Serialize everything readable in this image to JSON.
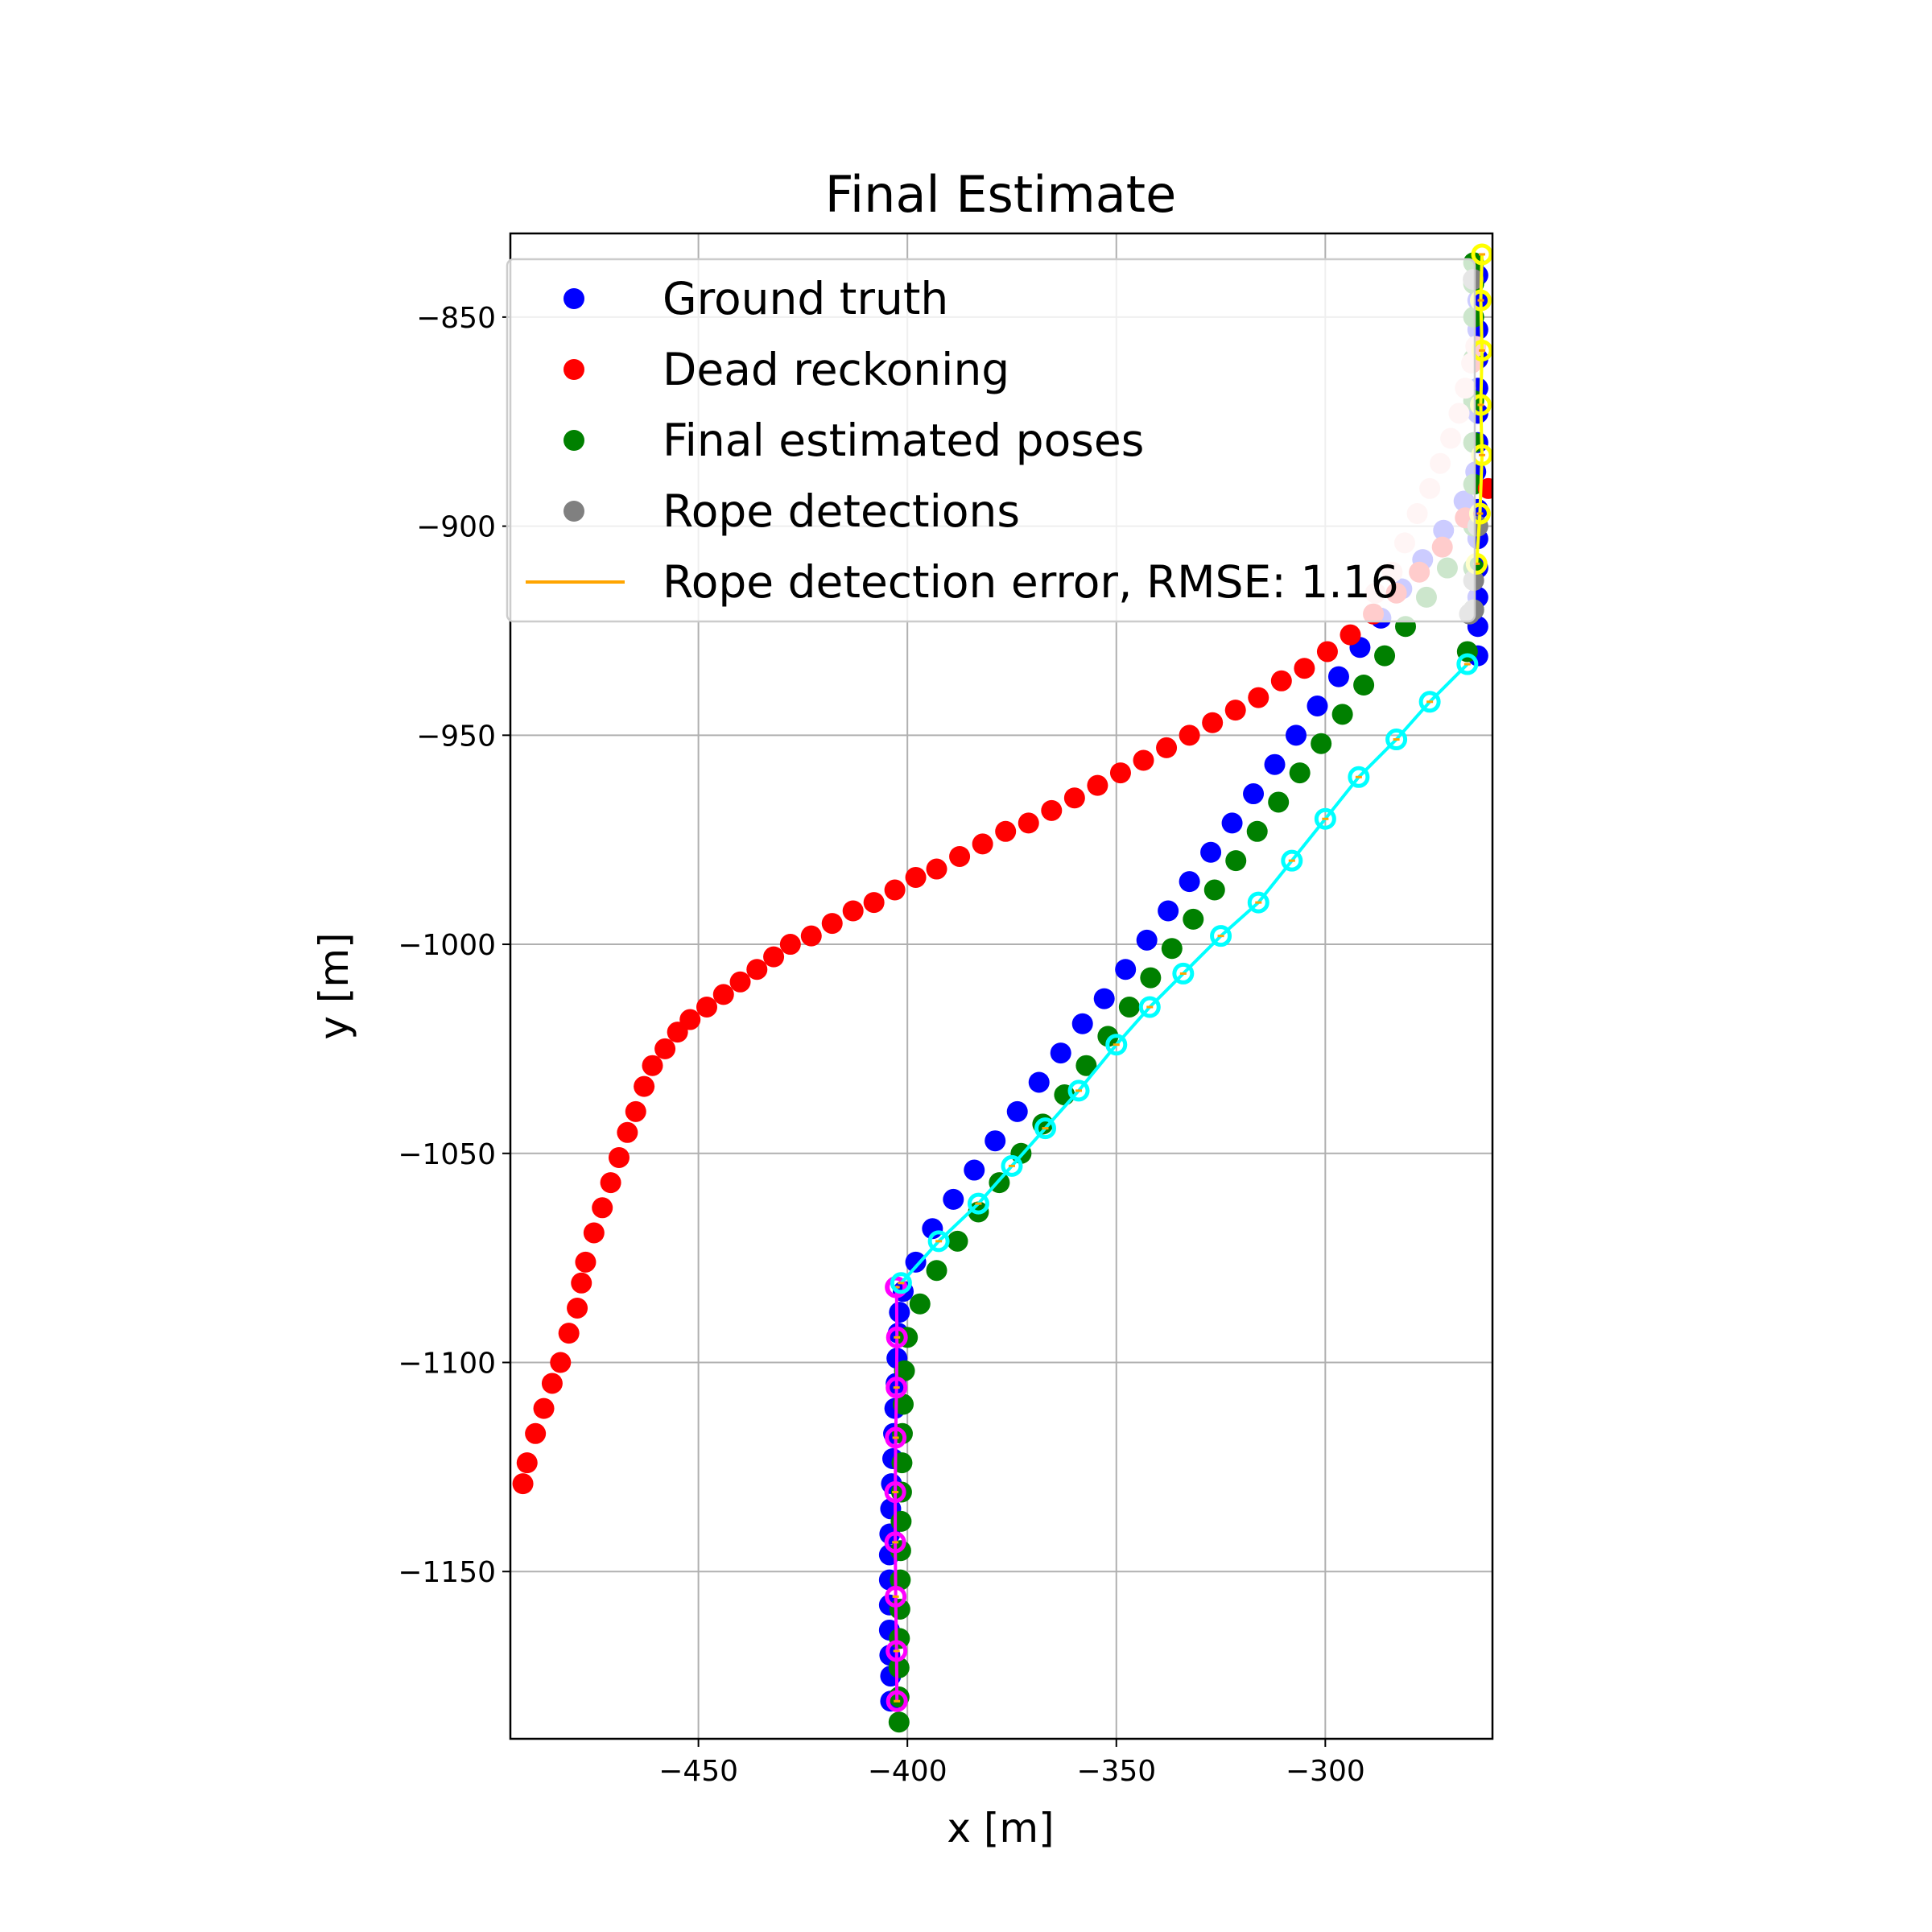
{
  "chart_data": {
    "type": "scatter",
    "title": "Final Estimate",
    "xlabel": "x [m]",
    "ylabel": "y [m]",
    "xlim": [
      -495,
      -260
    ],
    "ylim": [
      -1190,
      -830
    ],
    "xticks": [
      -450,
      -400,
      -350,
      -300
    ],
    "yticks": [
      -850,
      -900,
      -950,
      -1000,
      -1050,
      -1100,
      -1150
    ],
    "xtick_labels": [
      "−450",
      "−400",
      "−350",
      "−300"
    ],
    "ytick_labels": [
      "−850",
      "−900",
      "−950",
      "−1000",
      "−1050",
      "−1100",
      "−1150"
    ],
    "grid": true,
    "legend_position": "upper-left",
    "legend": [
      {
        "label": "Ground truth",
        "marker": "dot",
        "color": "#0000ff"
      },
      {
        "label": "Dead reckoning",
        "marker": "dot",
        "color": "#ff0000"
      },
      {
        "label": "Final estimated poses",
        "marker": "dot",
        "color": "#008000"
      },
      {
        "label": "Rope detections",
        "marker": "dot",
        "color": "#808080"
      },
      {
        "label": "Rope detection error, RMSE: 1.16",
        "marker": "line",
        "color": "#ffa500"
      }
    ],
    "series": [
      {
        "name": "Ground truth",
        "color": "#0000ff",
        "x": [
          -404,
          -404,
          -404.2,
          -404.3,
          -404.3,
          -404.3,
          -404.3,
          -404.2,
          -404,
          -403.8,
          -403.5,
          -403.3,
          -403,
          -402.7,
          -402.5,
          -402.2,
          -401.9,
          -401,
          -398,
          -394,
          -389,
          -384,
          -379,
          -373.7,
          -368.5,
          -363.3,
          -358.1,
          -352.9,
          -347.8,
          -342.7,
          -337.6,
          -332.5,
          -327.4,
          -322.3,
          -317.2,
          -312.1,
          -307,
          -301.9,
          -296.8,
          -291.7,
          -286.7,
          -281.7,
          -276.7,
          -271.7,
          -266.8,
          -264,
          -263.5,
          -263.5,
          -263.5,
          -263.5,
          -263.5,
          -263.5,
          -263.5,
          -263.5,
          -263.5,
          -263.5,
          -263.5,
          -263.5,
          -263.5
        ],
        "y": [
          -1181,
          -1175,
          -1170,
          -1164,
          -1158,
          -1152,
          -1146,
          -1141,
          -1135,
          -1129,
          -1123,
          -1117,
          -1111,
          -1105,
          -1099,
          -1093,
          -1088,
          -1083,
          -1076,
          -1068,
          -1061,
          -1054,
          -1047,
          -1040,
          -1033,
          -1026,
          -1019,
          -1013,
          -1006,
          -999,
          -992,
          -985,
          -978,
          -971,
          -964,
          -957,
          -950,
          -943,
          -936,
          -929,
          -922,
          -915,
          -908,
          -901,
          -894,
          -887,
          -880,
          -873,
          -867,
          -860,
          -853,
          -846,
          -840,
          -910,
          -917,
          -924,
          -931,
          -903,
          -896
        ]
      },
      {
        "name": "Final estimated poses",
        "color": "#008000",
        "x": [
          -402,
          -402,
          -402,
          -401.9,
          -401.8,
          -401.7,
          -401.6,
          -401.5,
          -401.4,
          -401.3,
          -401.2,
          -401,
          -400.7,
          -400,
          -397,
          -393,
          -388,
          -383,
          -378,
          -372.8,
          -367.6,
          -362.4,
          -357.2,
          -352,
          -346.9,
          -341.8,
          -336.7,
          -331.6,
          -326.5,
          -321.4,
          -316.3,
          -311.2,
          -306.1,
          -301,
          -295.9,
          -290.8,
          -285.8,
          -280.8,
          -275.8,
          -270.8,
          -266,
          -264.5,
          -264.5,
          -264.5,
          -264.5,
          -264.5,
          -264.5,
          -264.5,
          -264.5,
          -264.5,
          -264.5
        ],
        "y": [
          -1186,
          -1180,
          -1173,
          -1166,
          -1159,
          -1152,
          -1145,
          -1138,
          -1131,
          -1124,
          -1117,
          -1110,
          -1102,
          -1094,
          -1086,
          -1078,
          -1071,
          -1064,
          -1057,
          -1050,
          -1043,
          -1036,
          -1029,
          -1022,
          -1015,
          -1008,
          -1001,
          -994,
          -987,
          -980,
          -973,
          -966,
          -959,
          -952,
          -945,
          -938,
          -931,
          -924,
          -917,
          -910,
          -930,
          -920,
          -910,
          -900,
          -890,
          -880,
          -870,
          -860,
          -850,
          -842,
          -837
        ]
      },
      {
        "name": "Dead reckoning",
        "color": "#ff0000",
        "x": [
          -492,
          -491,
          -489,
          -487,
          -485,
          -483,
          -481,
          -479,
          -478,
          -477,
          -475,
          -473,
          -471,
          -469,
          -467,
          -465,
          -463,
          -461,
          -458,
          -455,
          -452,
          -448,
          -444,
          -440,
          -436,
          -432,
          -428,
          -423,
          -418,
          -413,
          -408,
          -403,
          -398,
          -393,
          -387.5,
          -382,
          -376.5,
          -371,
          -365.5,
          -360,
          -354.5,
          -349,
          -343.5,
          -338,
          -332.5,
          -327,
          -321.5,
          -316,
          -310.5,
          -305,
          -299.5,
          -294,
          -288.5,
          -283,
          -277.5,
          -272,
          -266.5,
          -261
        ],
        "y": [
          -1129,
          -1124,
          -1117,
          -1111,
          -1105,
          -1100,
          -1093,
          -1087,
          -1081,
          -1076,
          -1069,
          -1063,
          -1057,
          -1051,
          -1045,
          -1040,
          -1034,
          -1029,
          -1025,
          -1021,
          -1018,
          -1015,
          -1012,
          -1009,
          -1006,
          -1003,
          -1000,
          -998,
          -995,
          -992,
          -990,
          -987,
          -984,
          -982,
          -979,
          -976,
          -973,
          -971,
          -968,
          -965,
          -962,
          -959,
          -956,
          -953,
          -950,
          -947,
          -944,
          -941,
          -937,
          -934,
          -930,
          -926,
          -921,
          -916,
          -911,
          -905,
          -898,
          -891
        ]
      },
      {
        "name": "Dead reckoning (faded)",
        "color": "#ffcccc",
        "x": [
          -288,
          -284,
          -281,
          -278,
          -275,
          -272.5,
          -270,
          -268,
          -266.5,
          -265,
          -264
        ],
        "y": [
          -916,
          -911,
          -904,
          -897,
          -891,
          -885,
          -879,
          -873,
          -867,
          -861,
          -857
        ]
      },
      {
        "name": "Rope detections",
        "color": "#808080",
        "x": [
          -264.5,
          -264.5,
          -263.5,
          -264.6,
          -265.5
        ],
        "y": [
          -913,
          -920,
          -900,
          -841,
          -921
        ]
      }
    ],
    "rope_segments": [
      {
        "color": "#ff00ff",
        "detections_x": [
          -402.5,
          -402.6,
          -402.8,
          -402.9,
          -402.9,
          -402.8,
          -402.6,
          -402.5,
          -402.6,
          -402.8
        ],
        "detections_y": [
          -1181,
          -1169,
          -1156,
          -1143,
          -1131,
          -1118,
          -1106,
          -1094,
          -1082,
          -1082
        ]
      },
      {
        "color": "#00ffff",
        "detections_x": [
          -401.5,
          -392.5,
          -383,
          -375,
          -367,
          -359,
          -350,
          -342,
          -334,
          -325,
          -316,
          -308,
          -300,
          -292,
          -283,
          -275,
          -266
        ],
        "detections_y": [
          -1081,
          -1071,
          -1062,
          -1053,
          -1044,
          -1035,
          -1024,
          -1015,
          -1007,
          -998,
          -990,
          -980,
          -970,
          -960,
          -951,
          -942,
          -933
        ]
      },
      {
        "color": "#ffff00",
        "detections_x": [
          -263.8,
          -263,
          -262.5,
          -262.8,
          -262.5,
          -262.8,
          -262.5
        ],
        "detections_y": [
          -909,
          -897,
          -883,
          -871,
          -858,
          -846,
          -835
        ]
      }
    ]
  }
}
